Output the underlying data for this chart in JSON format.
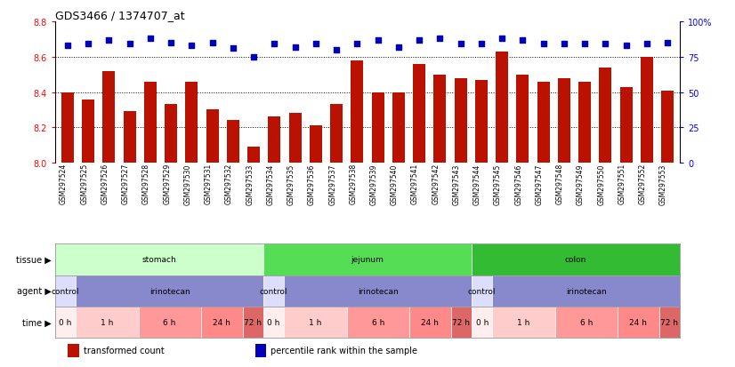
{
  "title": "GDS3466 / 1374707_at",
  "samples": [
    "GSM297524",
    "GSM297525",
    "GSM297526",
    "GSM297527",
    "GSM297528",
    "GSM297529",
    "GSM297530",
    "GSM297531",
    "GSM297532",
    "GSM297533",
    "GSM297534",
    "GSM297535",
    "GSM297536",
    "GSM297537",
    "GSM297538",
    "GSM297539",
    "GSM297540",
    "GSM297541",
    "GSM297542",
    "GSM297543",
    "GSM297544",
    "GSM297545",
    "GSM297546",
    "GSM297547",
    "GSM297548",
    "GSM297549",
    "GSM297550",
    "GSM297551",
    "GSM297552",
    "GSM297553"
  ],
  "bar_values": [
    8.4,
    8.36,
    8.52,
    8.29,
    8.46,
    8.33,
    8.46,
    8.3,
    8.24,
    8.09,
    8.26,
    8.28,
    8.21,
    8.33,
    8.58,
    8.4,
    8.4,
    8.56,
    8.5,
    8.48,
    8.47,
    8.63,
    8.5,
    8.46,
    8.48,
    8.46,
    8.54,
    8.43,
    8.6,
    8.41
  ],
  "percentile_values": [
    83,
    84,
    87,
    84,
    88,
    85,
    83,
    85,
    81,
    75,
    84,
    82,
    84,
    80,
    84,
    87,
    82,
    87,
    88,
    84,
    84,
    88,
    87,
    84,
    84,
    84,
    84,
    83,
    84,
    85
  ],
  "ylim_left": [
    8.0,
    8.8
  ],
  "ylim_right": [
    0,
    100
  ],
  "yticks_left": [
    8.0,
    8.2,
    8.4,
    8.6,
    8.8
  ],
  "yticks_right": [
    0,
    25,
    50,
    75,
    100
  ],
  "bar_color": "#BB1100",
  "dot_color": "#0000BB",
  "bar_bottom": 8.0,
  "tissue_row": [
    {
      "label": "stomach",
      "start": 0,
      "end": 10,
      "color": "#CCFFCC"
    },
    {
      "label": "jejunum",
      "start": 10,
      "end": 20,
      "color": "#55DD55"
    },
    {
      "label": "colon",
      "start": 20,
      "end": 30,
      "color": "#33BB33"
    }
  ],
  "agent_row": [
    {
      "label": "control",
      "start": 0,
      "end": 1,
      "color": "#DDDDFF"
    },
    {
      "label": "irinotecan",
      "start": 1,
      "end": 10,
      "color": "#8888CC"
    },
    {
      "label": "control",
      "start": 10,
      "end": 11,
      "color": "#DDDDFF"
    },
    {
      "label": "irinotecan",
      "start": 11,
      "end": 20,
      "color": "#8888CC"
    },
    {
      "label": "control",
      "start": 20,
      "end": 21,
      "color": "#DDDDFF"
    },
    {
      "label": "irinotecan",
      "start": 21,
      "end": 30,
      "color": "#8888CC"
    }
  ],
  "time_row": [
    {
      "label": "0 h",
      "start": 0,
      "end": 1,
      "color": "#FFEEEE"
    },
    {
      "label": "1 h",
      "start": 1,
      "end": 4,
      "color": "#FFCCCC"
    },
    {
      "label": "6 h",
      "start": 4,
      "end": 7,
      "color": "#FF9999"
    },
    {
      "label": "24 h",
      "start": 7,
      "end": 9,
      "color": "#FF8888"
    },
    {
      "label": "72 h",
      "start": 9,
      "end": 10,
      "color": "#DD6666"
    },
    {
      "label": "0 h",
      "start": 10,
      "end": 11,
      "color": "#FFEEEE"
    },
    {
      "label": "1 h",
      "start": 11,
      "end": 14,
      "color": "#FFCCCC"
    },
    {
      "label": "6 h",
      "start": 14,
      "end": 17,
      "color": "#FF9999"
    },
    {
      "label": "24 h",
      "start": 17,
      "end": 19,
      "color": "#FF8888"
    },
    {
      "label": "72 h",
      "start": 19,
      "end": 20,
      "color": "#DD6666"
    },
    {
      "label": "0 h",
      "start": 20,
      "end": 21,
      "color": "#FFEEEE"
    },
    {
      "label": "1 h",
      "start": 21,
      "end": 24,
      "color": "#FFCCCC"
    },
    {
      "label": "6 h",
      "start": 24,
      "end": 27,
      "color": "#FF9999"
    },
    {
      "label": "24 h",
      "start": 27,
      "end": 29,
      "color": "#FF8888"
    },
    {
      "label": "72 h",
      "start": 29,
      "end": 30,
      "color": "#DD6666"
    }
  ],
  "legend_items": [
    {
      "label": "transformed count",
      "color": "#BB1100",
      "marker": "s"
    },
    {
      "label": "percentile rank within the sample",
      "color": "#0000BB",
      "marker": "s"
    }
  ]
}
